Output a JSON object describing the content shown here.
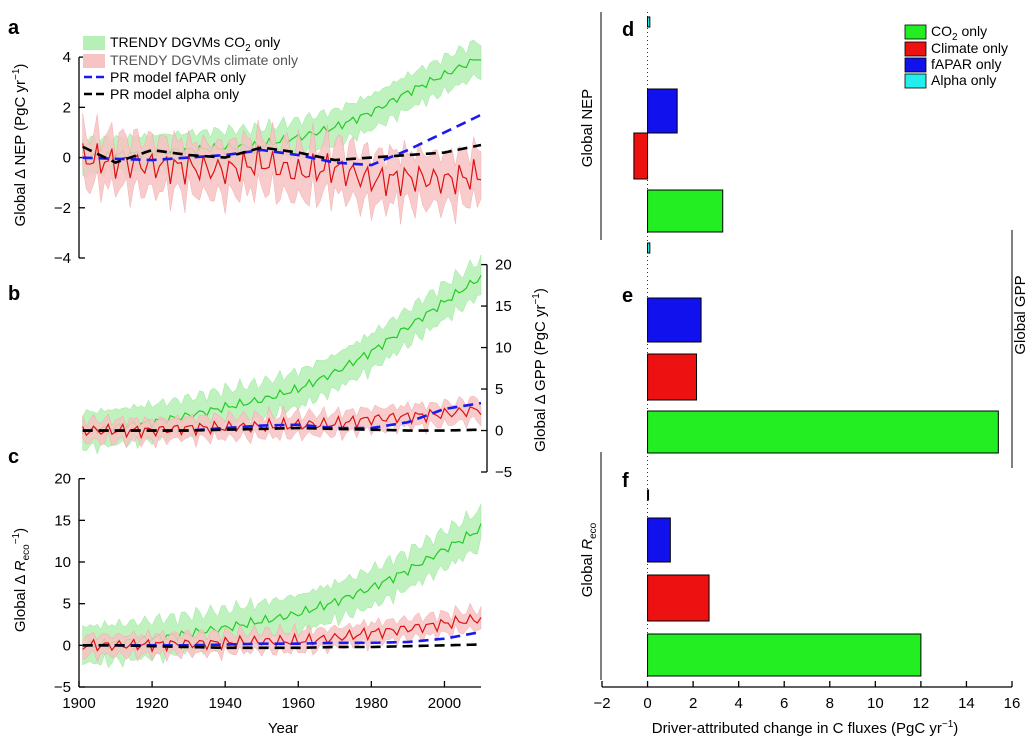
{
  "colors": {
    "co2_line": "#22cc22",
    "co2_band": "#b6f0b6",
    "climate_line": "#dd1111",
    "climate_band": "#f7c4c4",
    "fapar": "#1a1aee",
    "alpha": "#000000",
    "bar_co2": "#22ee22",
    "bar_climate": "#ee1111",
    "bar_fapar": "#1111ee",
    "bar_alpha": "#22eeee"
  },
  "panels": {
    "a": {
      "letter": "a",
      "ylabel_main": "Global Δ NEP (PgC yr",
      "ylabel_sup": "−1",
      "ylabel_end": ")"
    },
    "b": {
      "letter": "b",
      "ylabel_main": "Global Δ GPP (PgC yr",
      "ylabel_sup": "−1",
      "ylabel_end": ")"
    },
    "c": {
      "letter": "c",
      "ylabel_main": "Global Δ ",
      "ylabel_italic": "R",
      "ylabel_sub": "eco",
      "ylabel_mid": " (PgC yr",
      "ylabel_sup": "−1",
      "ylabel_end": ")"
    },
    "d": {
      "letter": "d",
      "label": "Global NEP"
    },
    "e": {
      "letter": "e",
      "label": "Global GPP"
    },
    "f": {
      "letter": "f",
      "label_main": "Global ",
      "label_italic": "R",
      "label_sub": "eco"
    },
    "x_label": "Year",
    "bar_xlabel_main": "Driver-attributed change in C fluxes (PgC yr",
    "bar_xlabel_sup": "−1",
    "bar_xlabel_end": ")"
  },
  "legend_ts": [
    {
      "key": "co2",
      "text": "TRENDY DGVMs CO",
      "sub": "2",
      "tail": " only"
    },
    {
      "key": "climate",
      "text": "TRENDY DGVMs climate only",
      "sub": "",
      "tail": ""
    },
    {
      "key": "fapar",
      "text": "PR model fAPAR only",
      "sub": "",
      "tail": ""
    },
    {
      "key": "alpha",
      "text": "PR model alpha only",
      "sub": "",
      "tail": ""
    }
  ],
  "legend_bar": [
    {
      "key": "co2",
      "text": "CO",
      "sub": "2",
      "tail": " only"
    },
    {
      "key": "climate",
      "text": "Climate only",
      "sub": "",
      "tail": ""
    },
    {
      "key": "fapar",
      "text": "fAPAR only",
      "sub": "",
      "tail": ""
    },
    {
      "key": "alpha",
      "text": "Alpha only",
      "sub": "",
      "tail": ""
    }
  ],
  "chart_data": [
    {
      "id": "a",
      "type": "line",
      "xlabel": "Year",
      "ylabel": "Global Δ NEP (PgC yr−1)",
      "xlim": [
        1900,
        2010
      ],
      "ylim": [
        -4,
        5
      ],
      "yticks": [
        -4,
        -2,
        0,
        2,
        4
      ],
      "xticks": [
        1900,
        1920,
        1940,
        1960,
        1980,
        2000
      ],
      "series": [
        {
          "name": "TRENDY DGVMs CO2 only",
          "x": [
            1900,
            1910,
            1920,
            1930,
            1940,
            1950,
            1960,
            1970,
            1980,
            1990,
            2000,
            2010
          ],
          "y": [
            0,
            0.1,
            0.2,
            0.3,
            0.4,
            0.5,
            0.8,
            1.2,
            1.8,
            2.6,
            3.3,
            4.0
          ],
          "band": 0.8
        },
        {
          "name": "TRENDY DGVMs climate only",
          "x": [
            1900,
            1910,
            1920,
            1930,
            1940,
            1950,
            1960,
            1970,
            1980,
            1990,
            2000,
            2010
          ],
          "y": [
            0,
            -0.2,
            -0.3,
            -0.4,
            -0.5,
            -0.2,
            -0.6,
            -0.4,
            -0.9,
            -0.8,
            -0.9,
            -0.7
          ],
          "band": 1.2
        },
        {
          "name": "PR model fAPAR only",
          "x": [
            1900,
            1910,
            1920,
            1930,
            1940,
            1950,
            1960,
            1970,
            1980,
            1990,
            2000,
            2010
          ],
          "y": [
            0,
            -0.05,
            -0.1,
            0,
            0.1,
            0.3,
            0.1,
            -0.2,
            -0.3,
            0.3,
            1.0,
            1.7
          ]
        },
        {
          "name": "PR model alpha only",
          "x": [
            1900,
            1910,
            1920,
            1930,
            1940,
            1950,
            1960,
            1970,
            1980,
            1990,
            2000,
            2010
          ],
          "y": [
            0.5,
            -0.2,
            0.3,
            0.1,
            0.0,
            0.4,
            0.2,
            -0.1,
            0.0,
            0.1,
            0.2,
            0.5
          ]
        }
      ]
    },
    {
      "id": "b",
      "type": "line",
      "xlabel": "",
      "ylabel": "Global Δ GPP (PgC yr−1)",
      "xlim": [
        1900,
        2010
      ],
      "ylim": [
        -5,
        22
      ],
      "yticks": [
        -5,
        0,
        5,
        10,
        15,
        20
      ],
      "series": [
        {
          "name": "TRENDY DGVMs CO2 only",
          "x": [
            1900,
            1910,
            1920,
            1930,
            1940,
            1950,
            1960,
            1970,
            1980,
            1990,
            2000,
            2010
          ],
          "y": [
            0,
            0.4,
            1.0,
            1.8,
            2.8,
            3.7,
            5.0,
            7.0,
            9.5,
            12.5,
            15.5,
            18.5
          ],
          "band": 2.5
        },
        {
          "name": "TRENDY DGVMs climate only",
          "x": [
            1900,
            1910,
            1920,
            1930,
            1940,
            1950,
            1960,
            1970,
            1980,
            1990,
            2000,
            2010
          ],
          "y": [
            0,
            0,
            0,
            0.3,
            0.4,
            0.5,
            0.7,
            0.8,
            1.4,
            1.7,
            2.0,
            2.6
          ],
          "band": 1.5
        },
        {
          "name": "PR model fAPAR only",
          "x": [
            1900,
            1910,
            1920,
            1930,
            1940,
            1950,
            1960,
            1970,
            1980,
            1990,
            2000,
            2010
          ],
          "y": [
            0,
            0,
            0,
            0,
            0.3,
            0.6,
            0.7,
            0.3,
            0.3,
            1.0,
            2.6,
            3.3
          ]
        },
        {
          "name": "PR model alpha only",
          "x": [
            1900,
            1910,
            1920,
            1930,
            1940,
            1950,
            1960,
            1970,
            1980,
            1990,
            2000,
            2010
          ],
          "y": [
            0,
            0,
            0,
            0,
            0.1,
            0.2,
            0.3,
            0.2,
            0.1,
            0,
            0,
            0.1
          ]
        }
      ]
    },
    {
      "id": "c",
      "type": "line",
      "xlabel": "Year",
      "ylabel": "Global Δ Reco (PgC yr−1)",
      "xlim": [
        1900,
        2010
      ],
      "ylim": [
        -5,
        22
      ],
      "yticks": [
        -5,
        0,
        5,
        10,
        15,
        20
      ],
      "xticks": [
        1900,
        1920,
        1940,
        1960,
        1980,
        2000
      ],
      "series": [
        {
          "name": "TRENDY DGVMs CO2 only",
          "x": [
            1900,
            1910,
            1920,
            1930,
            1940,
            1950,
            1960,
            1970,
            1980,
            1990,
            2000,
            2010
          ],
          "y": [
            0,
            0.3,
            0.8,
            1.4,
            2.1,
            2.9,
            3.8,
            5.2,
            6.9,
            9.0,
            11.5,
            14.0
          ],
          "band": 2.6
        },
        {
          "name": "TRENDY DGVMs climate only",
          "x": [
            1900,
            1910,
            1920,
            1930,
            1940,
            1950,
            1960,
            1970,
            1980,
            1990,
            2000,
            2010
          ],
          "y": [
            0,
            0,
            0.1,
            0.2,
            0.3,
            0.5,
            0.5,
            0.9,
            1.5,
            2.0,
            2.6,
            3.2
          ],
          "band": 1.4
        },
        {
          "name": "PR model fAPAR only",
          "x": [
            1900,
            1910,
            1920,
            1930,
            1940,
            1950,
            1960,
            1970,
            1980,
            1990,
            2000,
            2010
          ],
          "y": [
            0,
            0,
            0,
            0,
            0.1,
            0.2,
            0.2,
            0.3,
            0.3,
            0.4,
            0.8,
            1.6
          ]
        },
        {
          "name": "PR model alpha only",
          "x": [
            1900,
            1910,
            1920,
            1930,
            1940,
            1950,
            1960,
            1970,
            1980,
            1990,
            2000,
            2010
          ],
          "y": [
            0,
            0,
            -0.1,
            -0.2,
            -0.3,
            -0.3,
            -0.3,
            -0.2,
            -0.2,
            -0.1,
            0,
            0.1
          ]
        }
      ]
    },
    {
      "id": "def",
      "type": "bar",
      "orientation": "horizontal",
      "xlabel": "Driver-attributed change in C fluxes (PgC yr−1)",
      "xlim": [
        -2,
        16
      ],
      "xticks": [
        -2,
        0,
        2,
        4,
        6,
        8,
        10,
        12,
        14,
        16
      ],
      "groups": [
        {
          "name": "Global NEP",
          "values": {
            "alpha": 0.1,
            "fapar": 1.3,
            "climate": -0.6,
            "co2": 3.3
          }
        },
        {
          "name": "Global GPP",
          "values": {
            "alpha": 0.1,
            "fapar": 2.35,
            "climate": 2.15,
            "co2": 15.4
          }
        },
        {
          "name": "Global Reco",
          "values": {
            "alpha": 0.0,
            "fapar": 1.0,
            "climate": 2.7,
            "co2": 12.0
          }
        }
      ],
      "legend": [
        "CO2 only",
        "Climate only",
        "fAPAR only",
        "Alpha only"
      ]
    }
  ]
}
